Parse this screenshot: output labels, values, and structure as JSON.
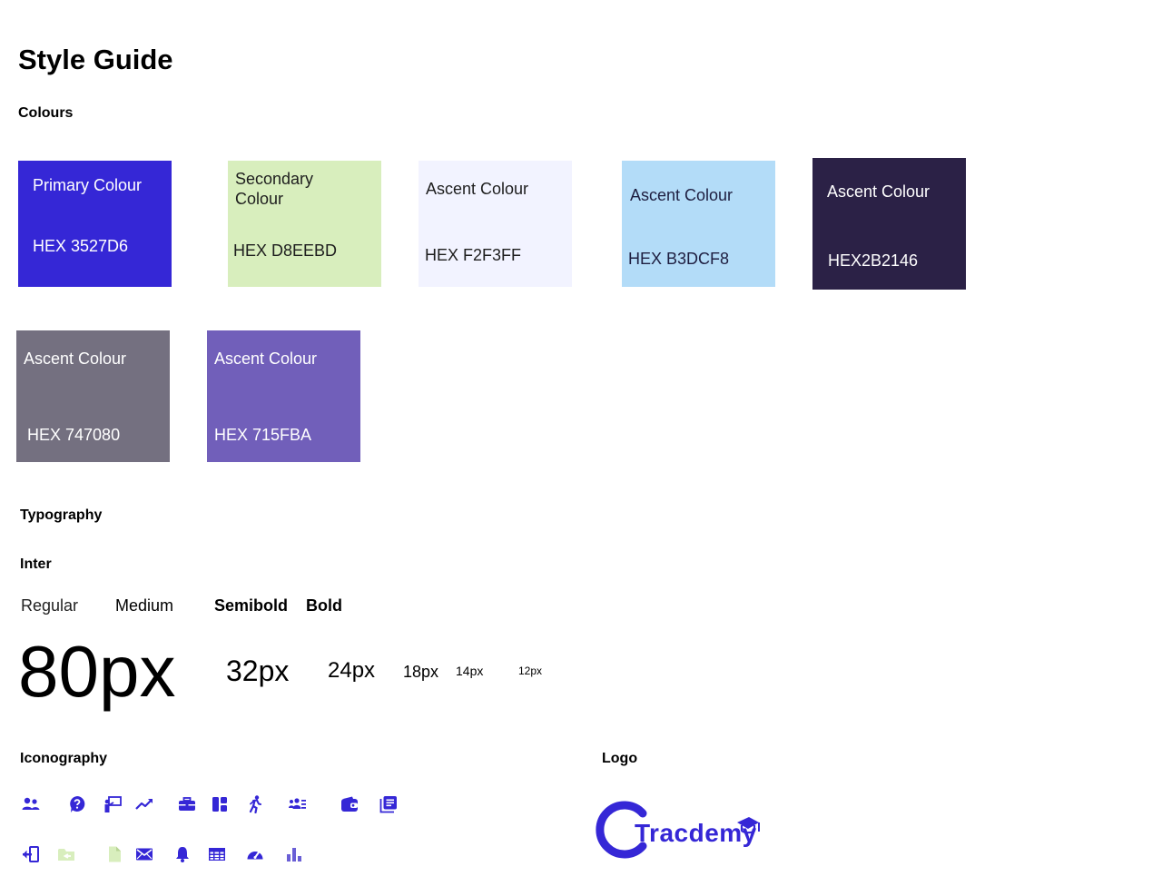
{
  "title": "Style Guide",
  "colours": {
    "heading": "Colours",
    "swatches": [
      {
        "name": "Primary Colour",
        "hex_label": "HEX 3527D6",
        "bg": "#3527D6",
        "text": "#ffffff"
      },
      {
        "name": "Secondary Colour",
        "hex_label": "HEX D8EEBD",
        "bg": "#D8EEBD",
        "text": "#1e1e1e"
      },
      {
        "name": "Ascent Colour",
        "hex_label": "HEX F2F3FF",
        "bg": "#F2F3FF",
        "text": "#1e1e1e"
      },
      {
        "name": "Ascent Colour",
        "hex_label": "HEX B3DCF8",
        "bg": "#B3DCF8",
        "text": "#1e1e40"
      },
      {
        "name": "Ascent Colour",
        "hex_label": "HEX2B2146",
        "bg": "#2B2146",
        "text": "#ffffff"
      },
      {
        "name": "Ascent Colour",
        "hex_label": "HEX 747080",
        "bg": "#747080",
        "text": "#ffffff"
      },
      {
        "name": "Ascent Colour",
        "hex_label": "HEX 715FBA",
        "bg": "#715FBA",
        "text": "#ffffff"
      }
    ]
  },
  "typography": {
    "heading": "Typography",
    "font_name": "Inter",
    "weights": [
      "Regular",
      "Medium",
      "Semibold",
      "Bold"
    ],
    "sizes": [
      "80px",
      "32px",
      "24px",
      "18px",
      "14px",
      "12px"
    ]
  },
  "iconography": {
    "heading": "Iconography",
    "icon_color": "#3527D6",
    "icon_alt_color": "#D8EEBD",
    "icons_row1": [
      "users-icon",
      "help-icon",
      "presentation-icon",
      "trend-up-icon",
      "briefcase-icon",
      "layout-grid-icon",
      "running-icon",
      "contacts-icon",
      "wallet-icon",
      "library-icon"
    ],
    "icons_row2": [
      "logout-icon",
      "folder-back-icon",
      "file-icon",
      "mail-icon",
      "bell-icon",
      "table-icon",
      "speedometer-icon",
      "bar-chart-icon"
    ]
  },
  "logo": {
    "heading": "Logo",
    "brand_name": "Tracdemy",
    "color": "#3527D6"
  }
}
